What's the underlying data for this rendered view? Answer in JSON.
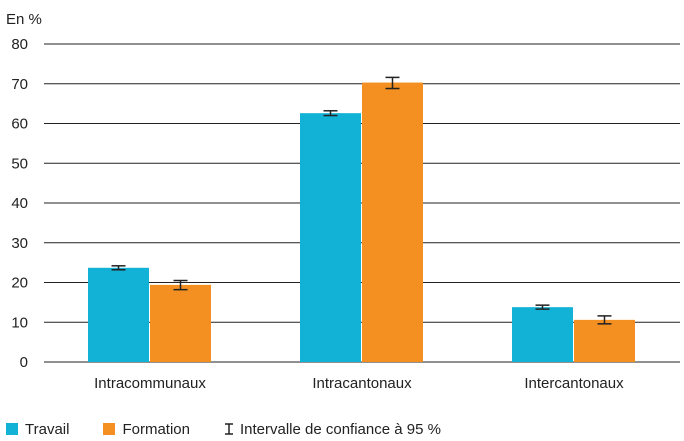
{
  "chart_data": {
    "type": "bar",
    "unit_label": "En %",
    "categories": [
      "Intracommunaux",
      "Intracantonaux",
      "Intercantonaux"
    ],
    "series": [
      {
        "name": "Travail",
        "color": "#12b2d6",
        "values": [
          23.7,
          62.6,
          13.8
        ],
        "ci_low": [
          23.2,
          62.0,
          13.3
        ],
        "ci_high": [
          24.2,
          63.2,
          14.3
        ]
      },
      {
        "name": "Formation",
        "color": "#f39021",
        "values": [
          19.4,
          70.3,
          10.6
        ],
        "ci_low": [
          18.2,
          68.8,
          9.6
        ],
        "ci_high": [
          20.5,
          71.6,
          11.6
        ]
      }
    ],
    "ylim": [
      0,
      80
    ],
    "yticks": [
      "0",
      "10",
      "20",
      "30",
      "40",
      "50",
      "60",
      "70",
      "80"
    ],
    "grid": true,
    "legend_position": "bottom-left",
    "ci_legend_label": "Intervalle de confiance à 95 %"
  }
}
